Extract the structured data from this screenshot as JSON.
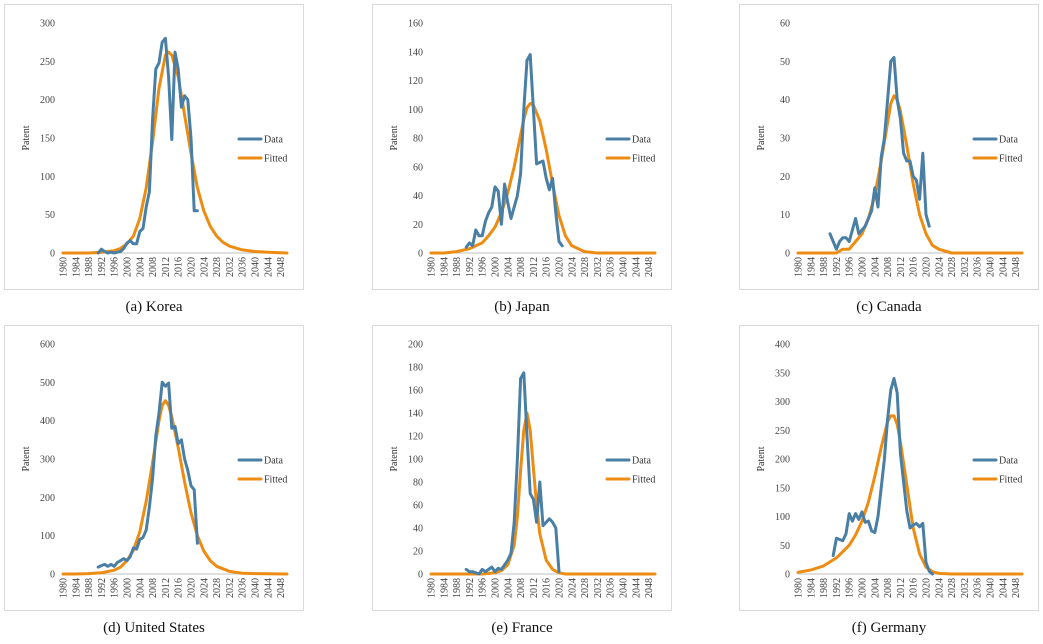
{
  "colors": {
    "data": "#4a7fa5",
    "fitted": "#ed8c12",
    "grid": "#d9d9d9",
    "axis": "#bfbfbf"
  },
  "chart_data": [
    {
      "type": "line",
      "title": "Korea",
      "caption": "(a)  Korea",
      "xlabel": "",
      "ylabel": "Patent",
      "xlim": [
        1980,
        2050
      ],
      "ylim": [
        0,
        300
      ],
      "ystep": 50,
      "x_ticks": [
        1980,
        1984,
        1988,
        1992,
        1996,
        2000,
        2004,
        2008,
        2012,
        2016,
        2020,
        2024,
        2028,
        2032,
        2036,
        2040,
        2044,
        2048
      ],
      "legend": [
        "Data",
        "Fitted"
      ],
      "series": [
        {
          "name": "Data",
          "x": [
            1991,
            1992,
            1993,
            1994,
            1995,
            1996,
            1997,
            1998,
            1999,
            2000,
            2001,
            2002,
            2003,
            2004,
            2005,
            2006,
            2007,
            2008,
            2009,
            2010,
            2011,
            2012,
            2013,
            2014,
            2015,
            2016,
            2017,
            2018,
            2019,
            2020,
            2021,
            2022
          ],
          "y": [
            0,
            5,
            2,
            0,
            1,
            0,
            1,
            2,
            6,
            13,
            16,
            12,
            12,
            28,
            32,
            60,
            80,
            175,
            240,
            248,
            275,
            280,
            230,
            148,
            262,
            240,
            190,
            205,
            200,
            150,
            55,
            55
          ]
        },
        {
          "name": "Fitted",
          "x": [
            1980,
            1984,
            1988,
            1992,
            1996,
            1998,
            2000,
            2002,
            2004,
            2006,
            2008,
            2010,
            2012,
            2013,
            2014,
            2016,
            2018,
            2020,
            2022,
            2024,
            2026,
            2028,
            2030,
            2032,
            2036,
            2040,
            2044,
            2050
          ],
          "y": [
            0,
            0,
            0,
            1,
            3,
            6,
            12,
            22,
            45,
            85,
            145,
            215,
            258,
            262,
            258,
            230,
            180,
            130,
            85,
            55,
            35,
            22,
            14,
            9,
            4,
            2,
            1,
            0
          ]
        }
      ]
    },
    {
      "type": "line",
      "title": "Japan",
      "caption": "(b)  Japan",
      "xlabel": "",
      "ylabel": "Patent",
      "xlim": [
        1980,
        2050
      ],
      "ylim": [
        0,
        160
      ],
      "ystep": 20,
      "x_ticks": [
        1980,
        1984,
        1988,
        1992,
        1996,
        2000,
        2004,
        2008,
        2012,
        2016,
        2020,
        2024,
        2028,
        2032,
        2036,
        2040,
        2044,
        2048
      ],
      "legend": [
        "Data",
        "Fitted"
      ],
      "series": [
        {
          "name": "Data",
          "x": [
            1991,
            1992,
            1993,
            1994,
            1995,
            1996,
            1997,
            1998,
            1999,
            2000,
            2001,
            2002,
            2003,
            2004,
            2005,
            2006,
            2007,
            2008,
            2009,
            2010,
            2011,
            2012,
            2013,
            2014,
            2015,
            2016,
            2017,
            2018,
            2019,
            2020,
            2021
          ],
          "y": [
            4,
            7,
            5,
            16,
            12,
            12,
            22,
            28,
            32,
            46,
            43,
            20,
            48,
            35,
            24,
            32,
            40,
            55,
            100,
            134,
            138,
            100,
            62,
            63,
            64,
            52,
            44,
            52,
            28,
            8,
            5
          ]
        },
        {
          "name": "Fitted",
          "x": [
            1980,
            1984,
            1988,
            1992,
            1996,
            1998,
            2000,
            2002,
            2004,
            2006,
            2008,
            2009,
            2010,
            2011,
            2012,
            2014,
            2016,
            2018,
            2020,
            2022,
            2024,
            2028,
            2032,
            2036,
            2040,
            2050
          ],
          "y": [
            0,
            0,
            1,
            3,
            7,
            12,
            18,
            28,
            42,
            60,
            82,
            93,
            101,
            104,
            103,
            92,
            72,
            48,
            26,
            12,
            5,
            1,
            0,
            0,
            0,
            0
          ]
        }
      ]
    },
    {
      "type": "line",
      "title": "Canada",
      "caption": "(c)  Canada",
      "xlabel": "",
      "ylabel": "Patent",
      "xlim": [
        1980,
        2050
      ],
      "ylim": [
        0,
        60
      ],
      "ystep": 10,
      "x_ticks": [
        1980,
        1984,
        1988,
        1992,
        1996,
        2000,
        2004,
        2008,
        2012,
        2016,
        2020,
        2024,
        2028,
        2032,
        2036,
        2040,
        2044,
        2048
      ],
      "legend": [
        "Data",
        "Fitted"
      ],
      "series": [
        {
          "name": "Data",
          "x": [
            1990,
            1991,
            1992,
            1993,
            1994,
            1995,
            1996,
            1997,
            1998,
            1999,
            2000,
            2001,
            2002,
            2003,
            2004,
            2005,
            2006,
            2007,
            2008,
            2009,
            2010,
            2011,
            2012,
            2013,
            2014,
            2015,
            2016,
            2017,
            2018,
            2019,
            2020,
            2021
          ],
          "y": [
            5,
            3,
            1,
            3,
            4,
            4,
            3,
            6,
            9,
            5,
            6,
            7,
            9,
            11,
            17,
            12,
            25,
            30,
            40,
            50,
            51,
            40,
            35,
            26,
            24,
            24,
            20,
            19,
            14,
            26,
            10,
            7
          ]
        },
        {
          "name": "Fitted",
          "x": [
            1980,
            1984,
            1988,
            1992,
            1994,
            1996,
            1998,
            2000,
            2002,
            2004,
            2006,
            2008,
            2009,
            2010,
            2011,
            2012,
            2014,
            2016,
            2018,
            2020,
            2022,
            2024,
            2028,
            2032,
            2036,
            2040,
            2050
          ],
          "y": [
            0,
            0,
            0,
            0,
            1,
            1,
            3,
            5,
            9,
            15,
            24,
            34,
            39,
            41,
            40,
            37,
            28,
            18,
            10,
            5,
            2,
            1,
            0,
            0,
            0,
            0,
            0
          ]
        }
      ]
    },
    {
      "type": "line",
      "title": "United States",
      "caption": "(d)  United  States",
      "xlabel": "",
      "ylabel": "Patent",
      "xlim": [
        1980,
        2050
      ],
      "ylim": [
        0,
        600
      ],
      "ystep": 100,
      "x_ticks": [
        1980,
        1984,
        1988,
        1992,
        1996,
        2000,
        2004,
        2008,
        2012,
        2016,
        2020,
        2024,
        2028,
        2032,
        2036,
        2040,
        2044,
        2048
      ],
      "legend": [
        "Data",
        "Fitted"
      ],
      "series": [
        {
          "name": "Data",
          "x": [
            1991,
            1992,
            1993,
            1994,
            1995,
            1996,
            1997,
            1998,
            1999,
            2000,
            2001,
            2002,
            2003,
            2004,
            2005,
            2006,
            2007,
            2008,
            2009,
            2010,
            2011,
            2012,
            2013,
            2014,
            2015,
            2016,
            2017,
            2018,
            2019,
            2020,
            2021,
            2022
          ],
          "y": [
            18,
            22,
            25,
            20,
            25,
            20,
            30,
            35,
            40,
            35,
            45,
            68,
            65,
            90,
            95,
            115,
            175,
            250,
            360,
            420,
            500,
            490,
            498,
            380,
            385,
            340,
            350,
            300,
            270,
            230,
            220,
            80
          ]
        },
        {
          "name": "Fitted",
          "x": [
            1980,
            1984,
            1988,
            1992,
            1996,
            1998,
            2000,
            2002,
            2004,
            2006,
            2008,
            2010,
            2011,
            2012,
            2013,
            2014,
            2016,
            2018,
            2020,
            2022,
            2024,
            2026,
            2028,
            2032,
            2036,
            2040,
            2050
          ],
          "y": [
            0,
            0,
            1,
            3,
            10,
            18,
            35,
            62,
            110,
            190,
            290,
            400,
            440,
            452,
            440,
            410,
            330,
            240,
            160,
            100,
            60,
            35,
            20,
            7,
            2,
            1,
            0
          ]
        }
      ]
    },
    {
      "type": "line",
      "title": "France",
      "caption": "(e)  France",
      "xlabel": "",
      "ylabel": "Patent",
      "xlim": [
        1980,
        2050
      ],
      "ylim": [
        0,
        200
      ],
      "ystep": 20,
      "x_ticks": [
        1980,
        1984,
        1988,
        1992,
        1996,
        2000,
        2004,
        2008,
        2012,
        2016,
        2020,
        2024,
        2028,
        2032,
        2036,
        2040,
        2044,
        2048
      ],
      "legend": [
        "Data",
        "Fitted"
      ],
      "series": [
        {
          "name": "Data",
          "x": [
            1991,
            1992,
            1993,
            1994,
            1995,
            1996,
            1997,
            1998,
            1999,
            2000,
            2001,
            2002,
            2003,
            2004,
            2005,
            2006,
            2007,
            2008,
            2009,
            2010,
            2011,
            2012,
            2013,
            2014,
            2015,
            2016,
            2017,
            2018,
            2019,
            2020
          ],
          "y": [
            4,
            2,
            2,
            1,
            0,
            4,
            2,
            4,
            6,
            2,
            5,
            4,
            8,
            12,
            18,
            45,
            100,
            170,
            175,
            120,
            70,
            65,
            45,
            80,
            42,
            45,
            48,
            45,
            40,
            2
          ]
        },
        {
          "name": "Fitted",
          "x": [
            1980,
            1990,
            1996,
            2000,
            2002,
            2004,
            2006,
            2007,
            2008,
            2009,
            2010,
            2011,
            2012,
            2013,
            2014,
            2016,
            2018,
            2020,
            2022,
            2024,
            2030,
            2040,
            2050
          ],
          "y": [
            0,
            0,
            0,
            1,
            3,
            8,
            25,
            50,
            90,
            125,
            140,
            125,
            92,
            60,
            35,
            12,
            4,
            1,
            0,
            0,
            0,
            0,
            0
          ]
        }
      ]
    },
    {
      "type": "line",
      "title": "Germany",
      "caption": "(f)  Germany",
      "xlabel": "",
      "ylabel": "Patent",
      "xlim": [
        1980,
        2050
      ],
      "ylim": [
        0,
        400
      ],
      "ystep": 50,
      "x_ticks": [
        1980,
        1984,
        1988,
        1992,
        1996,
        2000,
        2004,
        2008,
        2012,
        2016,
        2020,
        2024,
        2028,
        2032,
        2036,
        2040,
        2044,
        2048
      ],
      "legend": [
        "Data",
        "Fitted"
      ],
      "series": [
        {
          "name": "Data",
          "x": [
            1991,
            1992,
            1993,
            1994,
            1995,
            1996,
            1997,
            1998,
            1999,
            2000,
            2001,
            2002,
            2003,
            2004,
            2005,
            2006,
            2007,
            2008,
            2009,
            2010,
            2011,
            2012,
            2013,
            2014,
            2015,
            2016,
            2017,
            2018,
            2019,
            2020,
            2021,
            2022
          ],
          "y": [
            32,
            62,
            60,
            58,
            70,
            105,
            92,
            105,
            95,
            108,
            90,
            92,
            75,
            72,
            100,
            150,
            200,
            270,
            320,
            340,
            315,
            210,
            160,
            110,
            80,
            85,
            88,
            82,
            88,
            20,
            5,
            0
          ]
        },
        {
          "name": "Fitted",
          "x": [
            1980,
            1984,
            1988,
            1992,
            1996,
            1998,
            2000,
            2002,
            2004,
            2006,
            2008,
            2009,
            2010,
            2011,
            2012,
            2014,
            2016,
            2018,
            2020,
            2022,
            2024,
            2028,
            2032,
            2036,
            2040,
            2050
          ],
          "y": [
            3,
            7,
            14,
            28,
            50,
            68,
            92,
            125,
            170,
            220,
            265,
            275,
            275,
            260,
            230,
            155,
            80,
            35,
            12,
            4,
            1,
            0,
            0,
            0,
            0,
            0
          ]
        }
      ]
    }
  ]
}
